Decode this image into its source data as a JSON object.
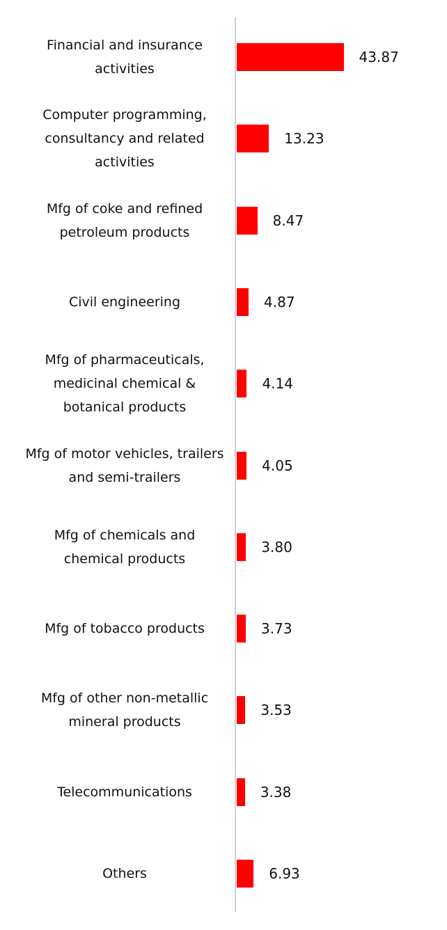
{
  "chart_data": {
    "type": "bar",
    "orientation": "horizontal",
    "categories": [
      "Financial and insurance activities",
      "Computer programming, consultancy and related activities",
      "Mfg of coke and refined petroleum products",
      "Civil engineering",
      "Mfg of pharmaceuticals, medicinal chemical & botanical products",
      "Mfg of motor vehicles, trailers and semi-trailers",
      "Mfg of chemicals and chemical products",
      "Mfg of tobacco products",
      "Mfg of other non-metallic mineral products",
      "Telecommunications",
      "Others"
    ],
    "values": [
      43.87,
      13.23,
      8.47,
      4.87,
      4.14,
      4.05,
      3.8,
      3.73,
      3.53,
      3.38,
      6.93
    ],
    "value_labels": [
      "43.87",
      "13.23",
      "8.47",
      "4.87",
      "4.14",
      "4.05",
      "3.80",
      "3.73",
      "3.53",
      "3.38",
      "6.93"
    ],
    "color": "#ff0000"
  }
}
